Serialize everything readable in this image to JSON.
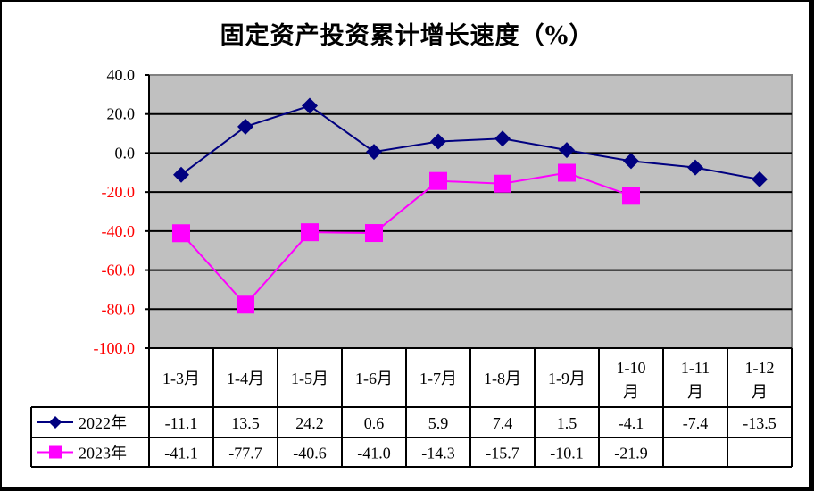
{
  "chart_data": {
    "type": "line",
    "title": "固定资产投资累计增长速度（%）",
    "xlabel": "",
    "ylabel": "",
    "ylim": [
      -100,
      40
    ],
    "yticks": [
      "40.0",
      "20.0",
      "0.0",
      "-20.0",
      "-40.0",
      "-60.0",
      "-80.0",
      "-100.0"
    ],
    "ytick_values": [
      40,
      20,
      0,
      -20,
      -40,
      -60,
      -80,
      -100
    ],
    "grid": true,
    "legend_position": "data-table",
    "categories": [
      "1-3月",
      "1-4月",
      "1-5月",
      "1-6月",
      "1-7月",
      "1-8月",
      "1-9月",
      "1-10月",
      "1-11月",
      "1-12月"
    ],
    "series": [
      {
        "name": "2022年",
        "marker": "diamond",
        "color": "#000080",
        "values": [
          -11.1,
          13.5,
          24.2,
          0.6,
          5.9,
          7.4,
          1.5,
          -4.1,
          -7.4,
          -13.5
        ],
        "labels": [
          "-11.1",
          "13.5",
          "24.2",
          "0.6",
          "5.9",
          "7.4",
          "1.5",
          "-4.1",
          "-7.4",
          "-13.5"
        ]
      },
      {
        "name": "2023年",
        "marker": "square",
        "color": "#FF00FF",
        "values": [
          -41.1,
          -77.7,
          -40.6,
          -41.0,
          -14.3,
          -15.7,
          -10.1,
          -21.9,
          null,
          null
        ],
        "labels": [
          "-41.1",
          "-77.7",
          "-40.6",
          "-41.0",
          "-14.3",
          "-15.7",
          "-10.1",
          "-21.9",
          "",
          ""
        ]
      }
    ]
  },
  "colors": {
    "plot_bg": "#C0C0C0",
    "positive_tick": "#000000",
    "negative_tick": "#FF0000",
    "series_2022": "#000080",
    "series_2023": "#FF00FF"
  }
}
